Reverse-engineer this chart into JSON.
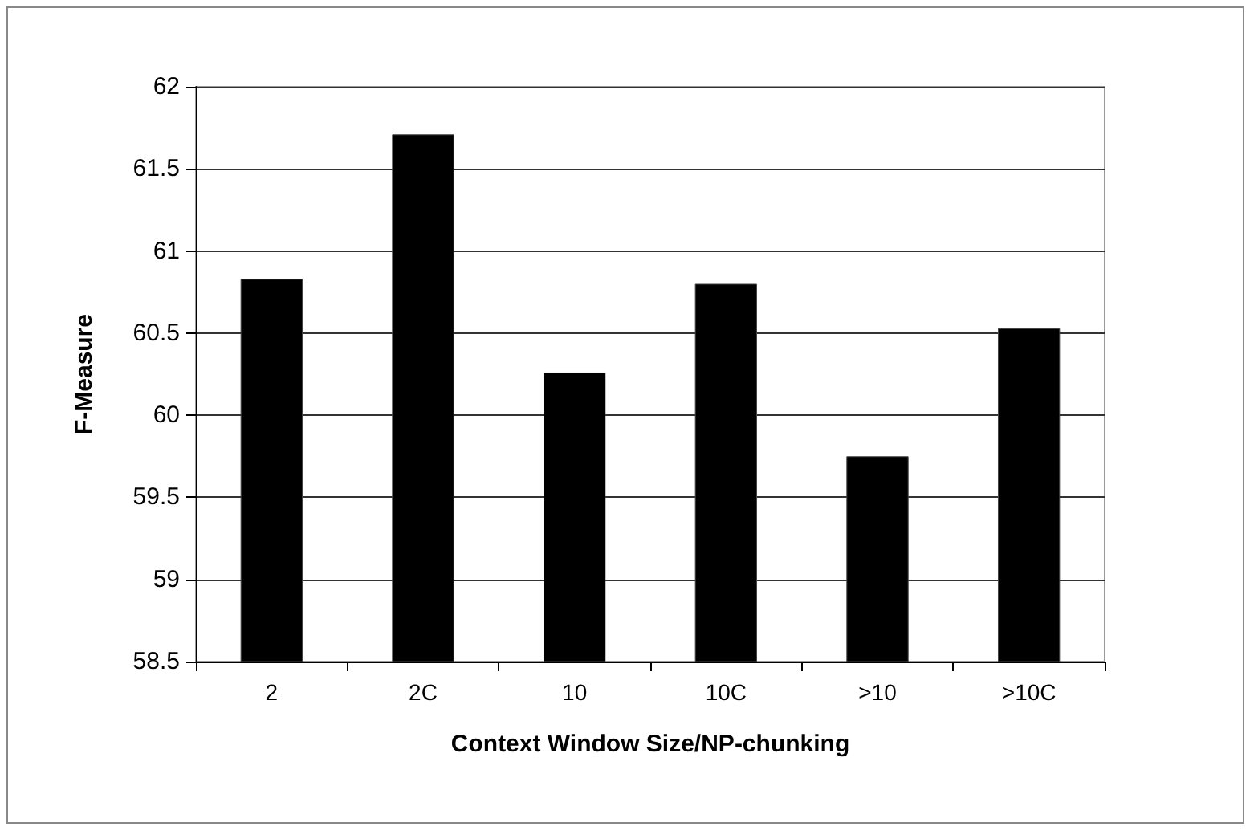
{
  "chart_data": {
    "type": "bar",
    "xlabel": "Context Window Size/NP-chunking",
    "ylabel": "F-Measure",
    "categories": [
      "2",
      "2C",
      "10",
      "10C",
      ">10",
      ">10C"
    ],
    "values": [
      60.83,
      61.71,
      60.26,
      60.8,
      59.75,
      60.53
    ],
    "color": "#000000",
    "ylim": [
      58.5,
      62
    ],
    "yticks": [
      58.5,
      59,
      59.5,
      60,
      60.5,
      61,
      61.5,
      62
    ],
    "grid": "y"
  }
}
